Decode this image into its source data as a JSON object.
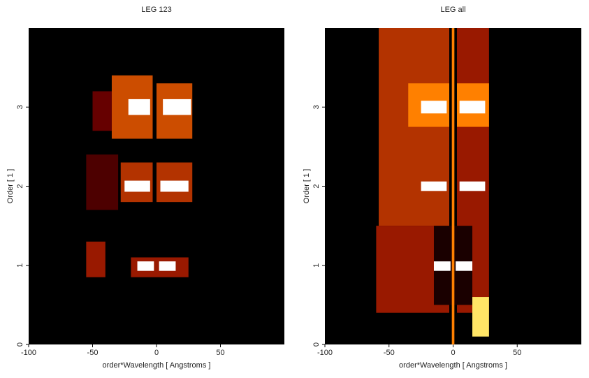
{
  "chart_data": [
    {
      "type": "heatmap",
      "title": "LEG 123",
      "xlabel": "order*Wavelength [ Angstroms ]",
      "ylabel": "Order [ 1 ]",
      "colormap": "afmhot",
      "xlim": [
        -100,
        100
      ],
      "ylim": [
        0,
        4
      ],
      "xticks": [
        -100,
        -50,
        0,
        50
      ],
      "yticks": [
        0,
        1,
        2,
        3
      ],
      "regions": [
        {
          "x": [
            -50,
            -35
          ],
          "y": [
            2.7,
            3.2
          ],
          "value": 0.2
        },
        {
          "x": [
            -35,
            -3
          ],
          "y": [
            2.6,
            3.4
          ],
          "value": 0.4
        },
        {
          "x": [
            0,
            28
          ],
          "y": [
            2.6,
            3.3
          ],
          "value": 0.4
        },
        {
          "x": [
            -22,
            -5
          ],
          "y": [
            2.9,
            3.1
          ],
          "value": 1
        },
        {
          "x": [
            5,
            27
          ],
          "y": [
            2.9,
            3.1
          ],
          "value": 1
        },
        {
          "x": [
            -55,
            -30
          ],
          "y": [
            1.7,
            2.4
          ],
          "value": 0.15
        },
        {
          "x": [
            -28,
            -3
          ],
          "y": [
            1.8,
            2.3
          ],
          "value": 0.35
        },
        {
          "x": [
            0,
            28
          ],
          "y": [
            1.8,
            2.3
          ],
          "value": 0.35
        },
        {
          "x": [
            -25,
            -5
          ],
          "y": [
            1.93,
            2.07
          ],
          "value": 1
        },
        {
          "x": [
            3,
            25
          ],
          "y": [
            1.93,
            2.07
          ],
          "value": 1
        },
        {
          "x": [
            -55,
            -40
          ],
          "y": [
            0.85,
            1.3
          ],
          "value": 0.3
        },
        {
          "x": [
            -20,
            25
          ],
          "y": [
            0.85,
            1.1
          ],
          "value": 0.3
        },
        {
          "x": [
            -15,
            -2
          ],
          "y": [
            0.93,
            1.05
          ],
          "value": 1
        },
        {
          "x": [
            2,
            15
          ],
          "y": [
            0.93,
            1.05
          ],
          "value": 1
        }
      ]
    },
    {
      "type": "heatmap",
      "title": "LEG all",
      "xlabel": "order*Wavelength [ Angstroms ]",
      "ylabel": "Order [ 1 ]",
      "colormap": "afmhot",
      "xlim": [
        -100,
        100
      ],
      "ylim": [
        0,
        4
      ],
      "xticks": [
        -100,
        -50,
        0,
        50
      ],
      "yticks": [
        0,
        1,
        2,
        3
      ],
      "regions": [
        {
          "x": [
            -58,
            -3
          ],
          "y": [
            1.5,
            4
          ],
          "value": 0.35
        },
        {
          "x": [
            -60,
            -3
          ],
          "y": [
            0.4,
            1.5
          ],
          "value": 0.3
        },
        {
          "x": [
            3,
            28
          ],
          "y": [
            0.4,
            4
          ],
          "value": 0.3
        },
        {
          "x": [
            -15,
            15
          ],
          "y": [
            0.5,
            1.5
          ],
          "value": 0.05
        },
        {
          "x": [
            -1,
            1
          ],
          "y": [
            0,
            4
          ],
          "value": 0.5
        },
        {
          "x": [
            -35,
            -3
          ],
          "y": [
            2.75,
            3.3
          ],
          "value": 0.5
        },
        {
          "x": [
            3,
            28
          ],
          "y": [
            2.75,
            3.3
          ],
          "value": 0.5
        },
        {
          "x": [
            -25,
            -5
          ],
          "y": [
            2.92,
            3.08
          ],
          "value": 1
        },
        {
          "x": [
            5,
            25
          ],
          "y": [
            2.92,
            3.08
          ],
          "value": 1
        },
        {
          "x": [
            -25,
            -5
          ],
          "y": [
            1.94,
            2.06
          ],
          "value": 1
        },
        {
          "x": [
            5,
            25
          ],
          "y": [
            1.94,
            2.06
          ],
          "value": 1
        },
        {
          "x": [
            -15,
            -2
          ],
          "y": [
            0.93,
            1.05
          ],
          "value": 1
        },
        {
          "x": [
            2,
            15
          ],
          "y": [
            0.93,
            1.05
          ],
          "value": 1
        },
        {
          "x": [
            15,
            28
          ],
          "y": [
            0.1,
            0.6
          ],
          "value": 0.7
        }
      ]
    }
  ]
}
